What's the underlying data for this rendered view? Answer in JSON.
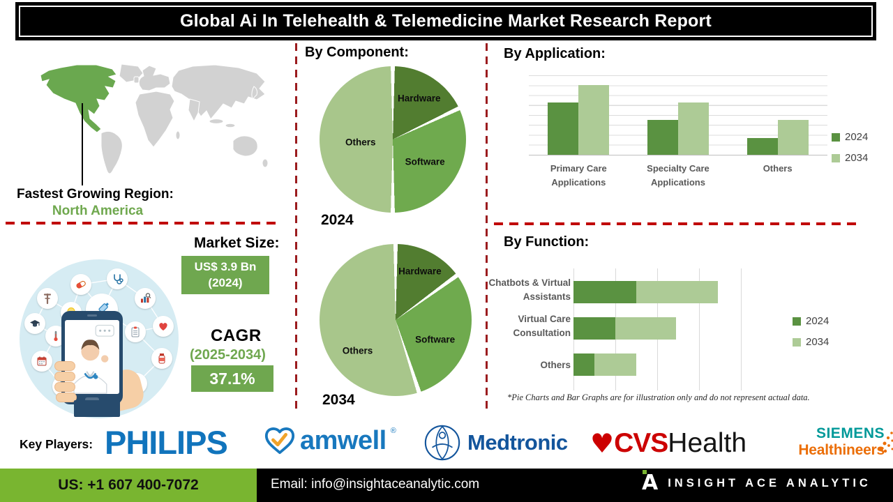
{
  "title": "Global Ai In Telehealth & Telemedicine Market Research Report",
  "region": {
    "label": "Fastest Growing Region:",
    "value": "North America"
  },
  "market": {
    "size_label": "Market Size:",
    "size_value": "US$ 3.9 Bn",
    "size_year": "(2024)",
    "cagr_label": "CAGR",
    "cagr_period": "(2025-2034)",
    "cagr_value": "37.1%"
  },
  "sections": {
    "component": {
      "heading": "By Component:",
      "pie1_year": "2024",
      "pie2_year": "2034"
    },
    "application": {
      "heading": "By Application:"
    },
    "function": {
      "heading": "By Function:"
    }
  },
  "chart_data": [
    {
      "type": "pie",
      "title": "By Component (2024)",
      "labels": [
        "Hardware",
        "Software",
        "Others"
      ],
      "values": [
        18,
        32,
        50
      ],
      "colors": [
        "#527d30",
        "#6faa4e",
        "#a8c68b"
      ],
      "note": "illustrative"
    },
    {
      "type": "pie",
      "title": "By Component (2034)",
      "labels": [
        "Hardware",
        "Software",
        "Others"
      ],
      "values": [
        15,
        30,
        55
      ],
      "colors": [
        "#527d30",
        "#6faa4e",
        "#a8c68b"
      ],
      "note": "illustrative"
    },
    {
      "type": "bar",
      "title": "By Application",
      "categories": [
        "Primary Care Applications",
        "Specialty Care Applications",
        "Others"
      ],
      "series": [
        {
          "name": "2024",
          "values": [
            66,
            44,
            21
          ],
          "color": "#5a9241"
        },
        {
          "name": "2034",
          "values": [
            88,
            66,
            44
          ],
          "color": "#adcb96"
        }
      ],
      "ylim": [
        0,
        100
      ],
      "grid": true,
      "legend_position": "right",
      "note": "illustrative"
    },
    {
      "type": "bar-horizontal-stacked",
      "title": "By Function",
      "categories": [
        "Chatbots & Virtual Assistants",
        "Virtual Care Consultation",
        "Others"
      ],
      "series": [
        {
          "name": "2024",
          "values": [
            30,
            20,
            10
          ],
          "color": "#5a9241"
        },
        {
          "name": "2034",
          "values": [
            39,
            29,
            20
          ],
          "color": "#adcb96"
        }
      ],
      "xlim": [
        0,
        87
      ],
      "gridline_step": 20,
      "legend_position": "right",
      "note": "illustrative"
    }
  ],
  "disclaimer": "*Pie Charts and Bar Graphs are for illustration only and do not represent actual data.",
  "key_players": {
    "label": "Key Players:",
    "philips": "PHILIPS",
    "amwell": "amwell",
    "amwell_mark": "®",
    "medtronic": "Medtronic",
    "cvs_heart": "♥",
    "cvs_cvs": "CVS",
    "cvs_health": "Health",
    "siemens_line1": "SIEMENS",
    "siemens_line2": "Healthineers"
  },
  "footer": {
    "phone": "US: +1 607 400-7072",
    "email": "Email: info@insightaceanalytic.com",
    "brand_letter": "A",
    "brand": "INSIGHT ACE ANALYTIC"
  },
  "colors": {
    "map_highlight": "#6aa84f",
    "map_land": "#d2d2d2",
    "accent_green": "#6fa74f",
    "footer_green": "#79b530",
    "dash_red": "#c00000",
    "dash_maroon": "#9b1b1e"
  }
}
